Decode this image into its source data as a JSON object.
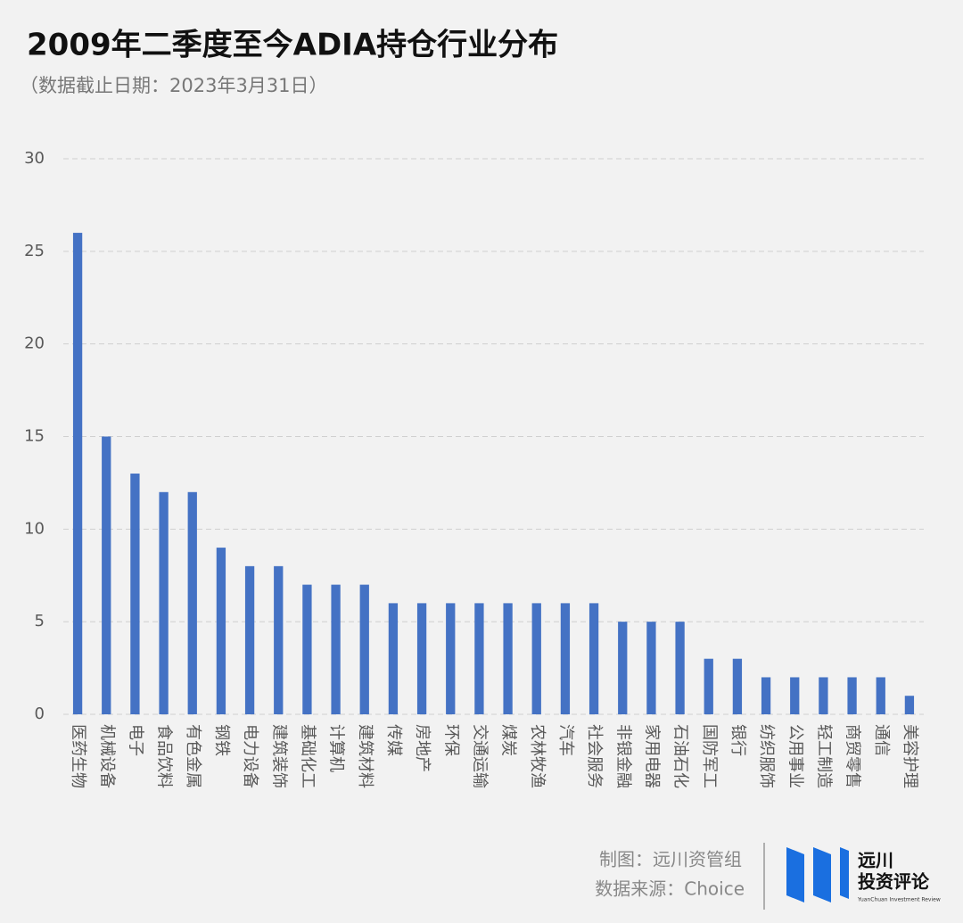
{
  "chart_data": {
    "type": "bar",
    "title": "2009年二季度至今ADIA持仓行业分布",
    "subtitle": "（数据截止日期：2023年3月31日）",
    "categories": [
      "医药生物",
      "机械设备",
      "电子",
      "食品饮料",
      "有色金属",
      "钢铁",
      "电力设备",
      "建筑装饰",
      "基础化工",
      "计算机",
      "建筑材料",
      "传媒",
      "房地产",
      "环保",
      "交通运输",
      "煤炭",
      "农林牧渔",
      "汽车",
      "社会服务",
      "非银金融",
      "家用电器",
      "石油石化",
      "国防军工",
      "银行",
      "纺织服饰",
      "公用事业",
      "轻工制造",
      "商贸零售",
      "通信",
      "美容护理"
    ],
    "values": [
      26,
      15,
      13,
      12,
      12,
      9,
      8,
      8,
      7,
      7,
      7,
      6,
      6,
      6,
      6,
      6,
      6,
      6,
      6,
      5,
      5,
      5,
      3,
      3,
      2,
      2,
      2,
      2,
      2,
      1
    ],
    "color": "#4472c4",
    "ylim": [
      0,
      30
    ],
    "yticks": [
      0,
      5,
      10,
      15,
      20,
      25,
      30
    ],
    "grid": true
  },
  "footer": {
    "made_by": "制图：远川资管组",
    "source": "数据来源：Choice"
  },
  "logo": {
    "name": "远川",
    "subtitle": "投资评论",
    "english": "YuanChuan Investment Review"
  }
}
